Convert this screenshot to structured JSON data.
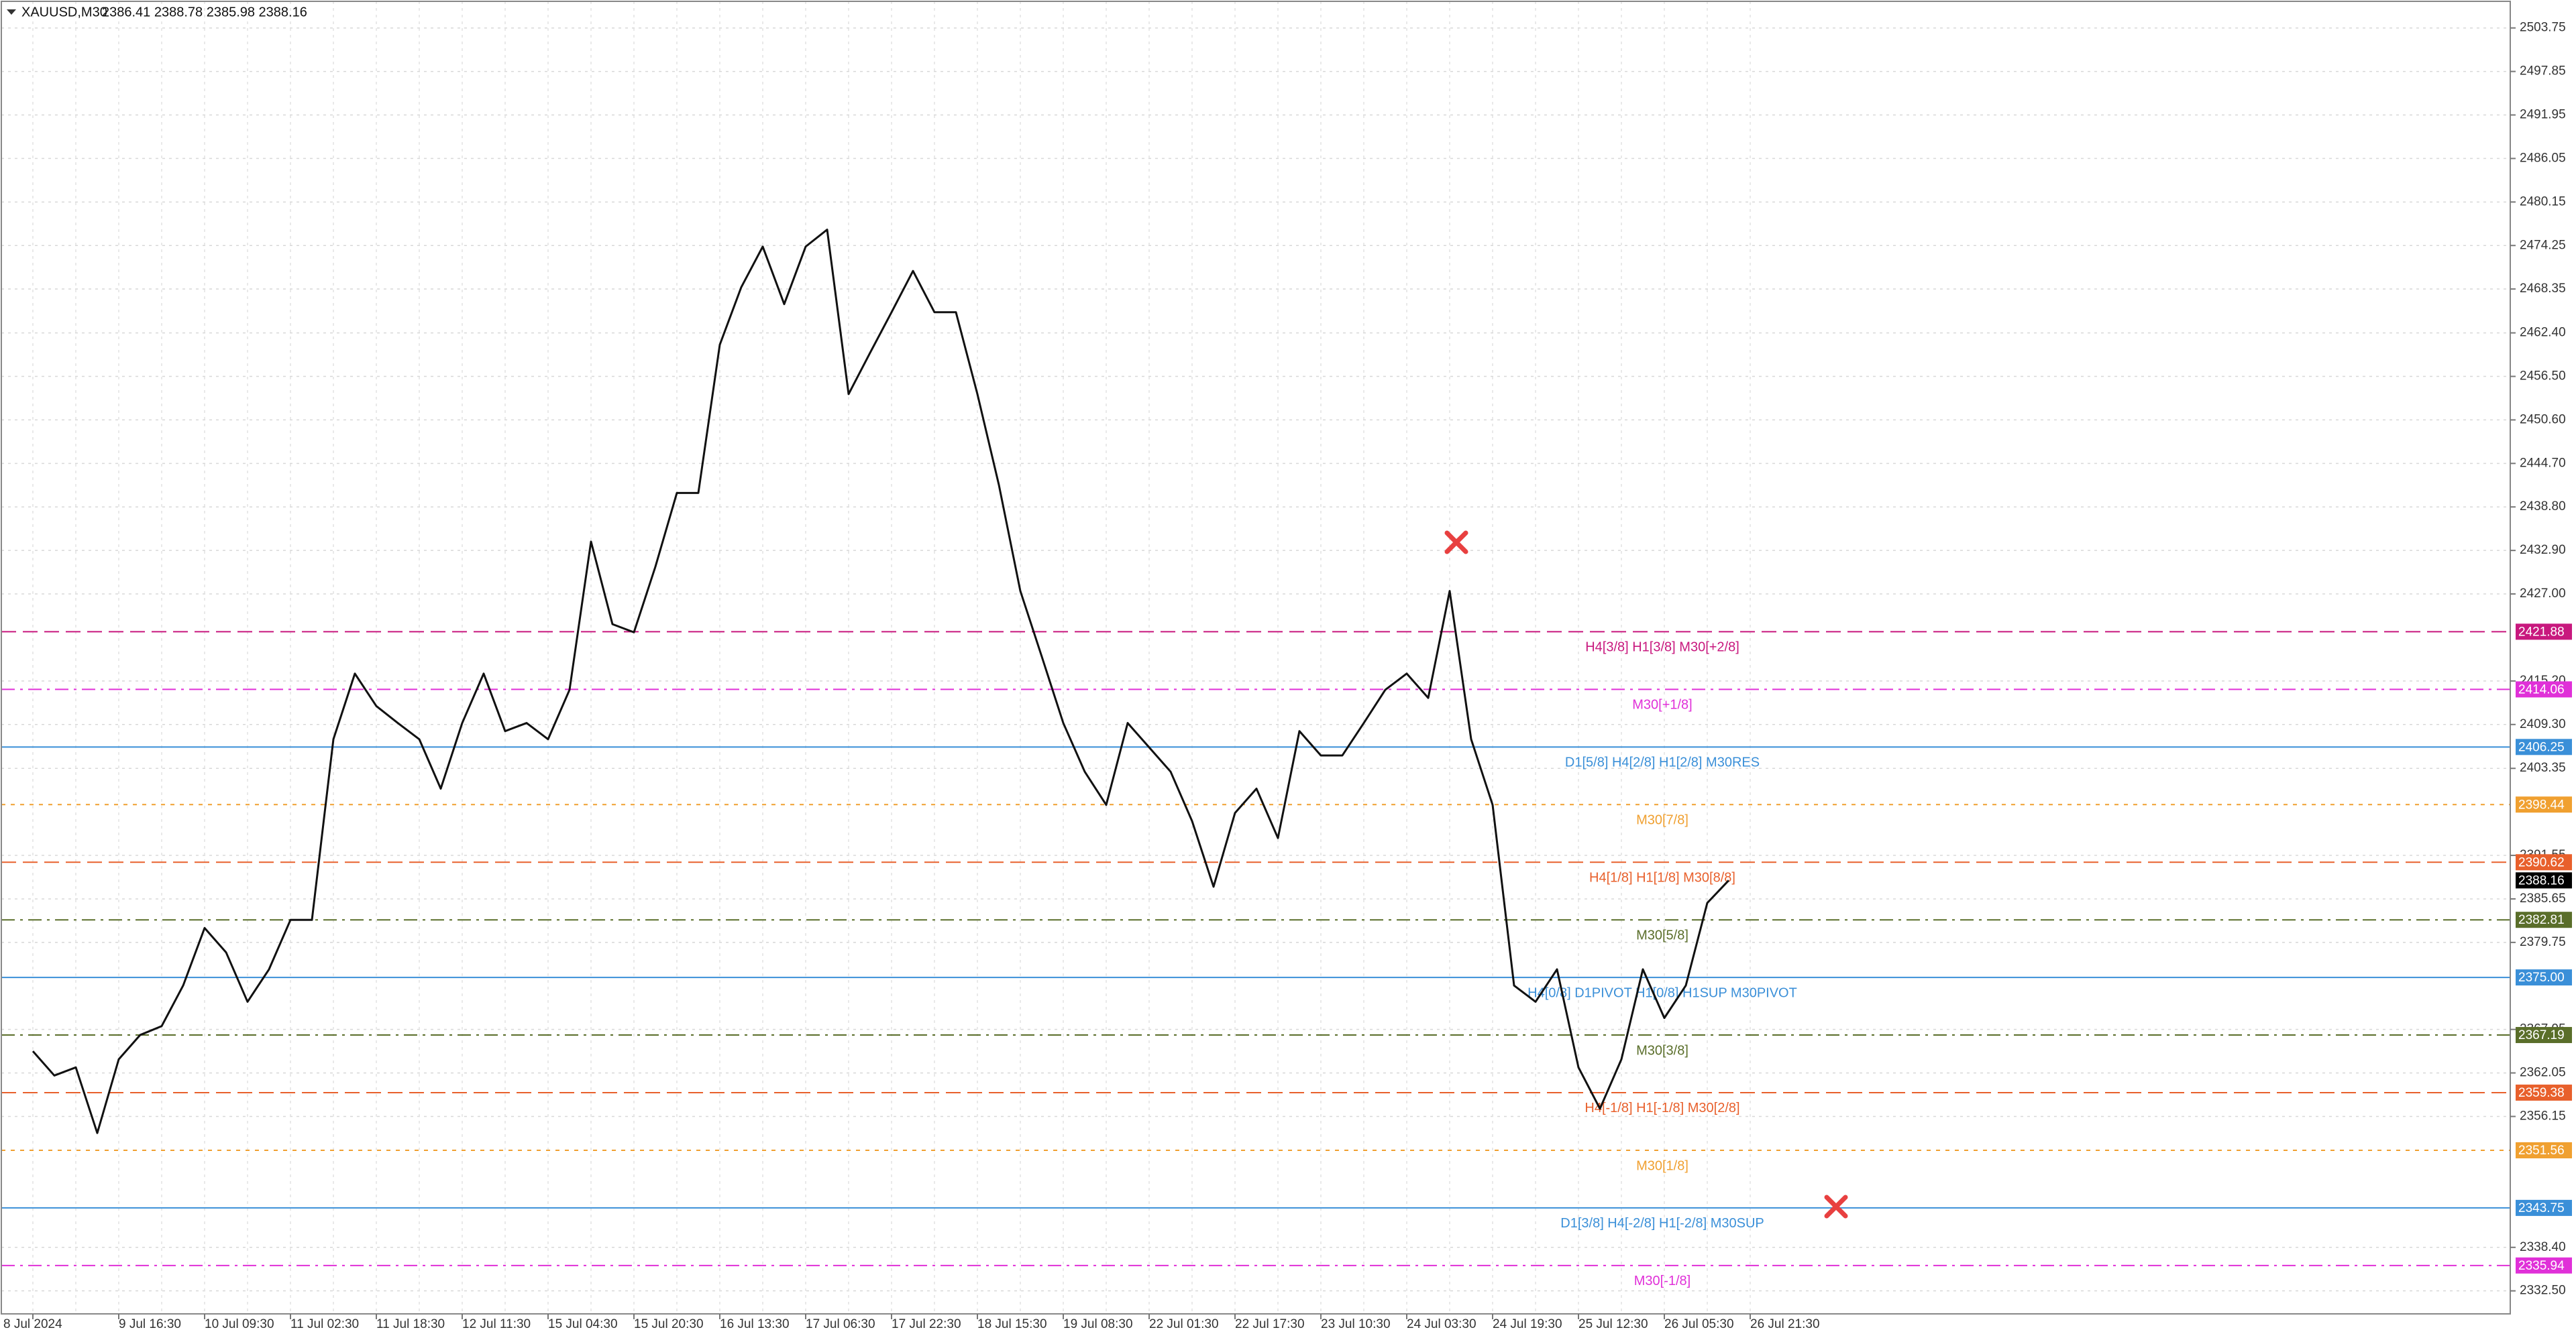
{
  "chart_data": {
    "type": "line",
    "title": "XAUUSD,M30",
    "subtitle": "2386.41 2388.78 2385.98 2388.16",
    "categories": [
      "8 Jul 2024",
      null,
      null,
      null,
      "9 Jul 16:30",
      null,
      null,
      null,
      "10 Jul 09:30",
      null,
      null,
      null,
      "11 Jul 02:30",
      null,
      null,
      null,
      "11 Jul 18:30",
      null,
      null,
      null,
      "12 Jul 11:30",
      null,
      null,
      null,
      "15 Jul 04:30",
      null,
      null,
      null,
      "15 Jul 20:30",
      null,
      null,
      null,
      "16 Jul 13:30",
      null,
      null,
      null,
      "17 Jul 06:30",
      null,
      null,
      null,
      "17 Jul 22:30",
      null,
      null,
      null,
      "18 Jul 15:30",
      null,
      null,
      null,
      "19 Jul 08:30",
      null,
      null,
      null,
      "22 Jul 01:30",
      null,
      null,
      null,
      "22 Jul 17:30",
      null,
      null,
      null,
      "23 Jul 10:30",
      null,
      null,
      null,
      "24 Jul 03:30",
      null,
      null,
      null,
      "24 Jul 19:30",
      null,
      null,
      null,
      "25 Jul 12:30",
      null,
      null,
      null,
      "26 Jul 05:30",
      null,
      null,
      null,
      "26 Jul 21:30"
    ],
    "series": [
      {
        "name": "XAUUSD",
        "color": "#111111",
        "values": [
          2365,
          2361.7,
          2362.8,
          2353.9,
          2363.9,
          2367.2,
          2368.4,
          2373.9,
          2381.7,
          2378.4,
          2371.7,
          2376.1,
          2382.8,
          2382.8,
          2407.3,
          2416.2,
          2411.8,
          2409.5,
          2407.3,
          2400.6,
          2409.5,
          2416.2,
          2408.4,
          2409.5,
          2407.3,
          2414,
          2434.1,
          2422.9,
          2421.8,
          2430.7,
          2440.7,
          2440.7,
          2460.8,
          2468.6,
          2474.1,
          2466.3,
          2474.1,
          2476.4,
          2454.1,
          2459.7,
          2465.2,
          2470.8,
          2465.2,
          2465.2,
          2454.1,
          2441.8,
          2427.4,
          2418.5,
          2409.5,
          2402.9,
          2398.4,
          2409.5,
          2406.2,
          2402.9,
          2396.2,
          2387.3,
          2397.3,
          2400.6,
          2393.9,
          2408.4,
          2405.1,
          2405.1,
          2409.5,
          2414,
          2416.2,
          2412.9,
          2427.4,
          2407.3,
          2398.4,
          2373.9,
          2371.7,
          2376.1,
          2362.8,
          2357.2,
          2363.9,
          2376.1,
          2369.5,
          2373.9,
          2385.1,
          2388.16,
          null
        ]
      }
    ],
    "ylim": [
      2329.38,
      2507.54
    ],
    "yticks": [
      2503.75,
      2497.85,
      2491.95,
      2486.05,
      2480.15,
      2474.25,
      2468.35,
      {
        "value": 2462.4,
        "label": "2462.40"
      },
      {
        "value": 2456.5,
        "label": "2456.50"
      },
      {
        "value": 2450.6,
        "label": "2450.60"
      },
      {
        "value": 2444.7,
        "label": "2444.70"
      },
      {
        "value": 2438.8,
        "label": "2438.80"
      },
      {
        "value": 2432.9,
        "label": "2432.90"
      },
      {
        "value": 2427,
        "label": "2427.00"
      },
      {
        "value": 2415.2,
        "label": "2415.20"
      },
      {
        "value": 2409.3,
        "label": "2409.30"
      },
      2403.35,
      2391.55,
      2385.65,
      2379.75,
      2367.95,
      2362.05,
      2356.15,
      {
        "value": 2338.4,
        "label": "2338.40"
      },
      {
        "value": 2332.5,
        "label": "2332.50"
      }
    ],
    "grid": true,
    "levels": [
      {
        "value": 2421.88,
        "value_label": "2421.88",
        "label": "H4[3/8] H1[3/8] M30[+2/8]",
        "color": "#c8187e",
        "style": "dashed"
      },
      {
        "value": 2414.06,
        "value_label": "2414.06",
        "label": "M30[+1/8]",
        "color": "#e030d8",
        "style": "dashdot"
      },
      {
        "value": 2406.25,
        "value_label": "2406.25",
        "label": "D1[5/8] H4[2/8] H1[2/8] M30RES",
        "color": "#3a8fd8",
        "style": "solid"
      },
      {
        "value": 2398.44,
        "value_label": "2398.44",
        "label": "M30[7/8]",
        "color": "#f0a030",
        "style": "dotted"
      },
      {
        "value": 2390.62,
        "value_label": "2390.62",
        "label": "H4[1/8] H1[1/8] M30[8/8]",
        "color": "#e8602c",
        "style": "dashed"
      },
      {
        "value": 2382.81,
        "value_label": "2382.81",
        "label": "M30[5/8]",
        "color": "#5a6e2a",
        "style": "dashdot"
      },
      {
        "value": 2375,
        "value_label": "2375.00",
        "label": "H4[0/8] D1PIVOT H1[0/8] H1SUP M30PIVOT",
        "color": "#3a8fd8",
        "style": "solid"
      },
      {
        "value": 2367.19,
        "value_label": "2367.19",
        "label": "M30[3/8]",
        "color": "#5a6e2a",
        "style": "dashdot"
      },
      {
        "value": 2359.38,
        "value_label": "2359.38",
        "label": "H4[-1/8] H1[-1/8] M30[2/8]",
        "color": "#e8602c",
        "style": "dashed"
      },
      {
        "value": 2351.56,
        "value_label": "2351.56",
        "label": "M30[1/8]",
        "color": "#f0a030",
        "style": "dotted"
      },
      {
        "value": 2343.75,
        "value_label": "2343.75",
        "label": "D1[3/8] H4[-2/8] H1[-2/8] M30SUP",
        "color": "#3a8fd8",
        "style": "solid"
      },
      {
        "value": 2335.94,
        "value_label": "2335.94",
        "label": "M30[-1/8]",
        "color": "#e030d8",
        "style": "dashdot"
      }
    ],
    "current": {
      "value": 2388.16,
      "color": "#000000"
    }
  }
}
